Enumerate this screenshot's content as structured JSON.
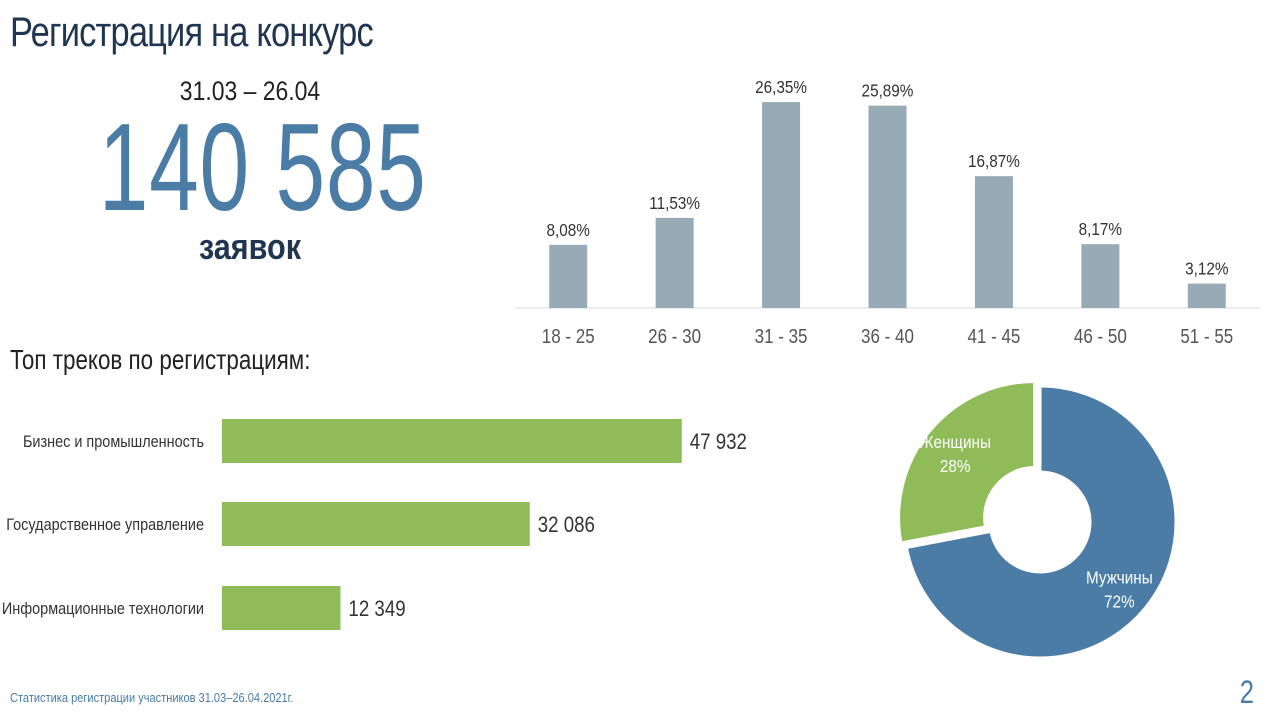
{
  "slide": {
    "title": "Регистрация на конкурс",
    "period": "31.03 – 26.04",
    "total": "140 585",
    "total_unit": "заявок",
    "tracks_title": "Топ треков по регистрациям:",
    "footer_note": "Статистика регистрации участников 31.03–26.04.2021г.",
    "page_number": "2"
  },
  "colors": {
    "title": "#1f3550",
    "accent_blue": "#4a7ca6",
    "age_bar": "#97abb7",
    "track_bar": "#8fbc58",
    "women": "#8fbc58",
    "men": "#4a7ca6"
  },
  "chart_data": [
    {
      "type": "bar",
      "categories": [
        "18 - 25",
        "26 - 30",
        "31 - 35",
        "36 - 40",
        "41 - 45",
        "46 - 50",
        "51 - 55"
      ],
      "values": [
        8.08,
        11.53,
        26.35,
        25.89,
        16.87,
        8.17,
        3.12
      ],
      "data_labels": [
        "8,08%",
        "11,53%",
        "26,35%",
        "25,89%",
        "16,87%",
        "8,17%",
        "3,12%"
      ],
      "title": "",
      "xlabel": "",
      "ylabel": "",
      "ylim": [
        0,
        27
      ],
      "grid": false
    },
    {
      "type": "bar",
      "orientation": "horizontal",
      "categories": [
        "Бизнес и промышленность",
        "Государственное управление",
        "Информационные технологии"
      ],
      "values": [
        47932,
        32086,
        12349
      ],
      "data_labels": [
        "47 932",
        "32 086",
        "12 349"
      ],
      "title": "",
      "xlabel": "",
      "ylabel": "",
      "xlim": [
        0,
        49000
      ],
      "grid": false
    },
    {
      "type": "pie",
      "style": "donut",
      "categories": [
        "Женщины",
        "Мужчины"
      ],
      "values": [
        28,
        72
      ],
      "data_labels": [
        "28%",
        "72%"
      ],
      "legend": "none"
    }
  ]
}
